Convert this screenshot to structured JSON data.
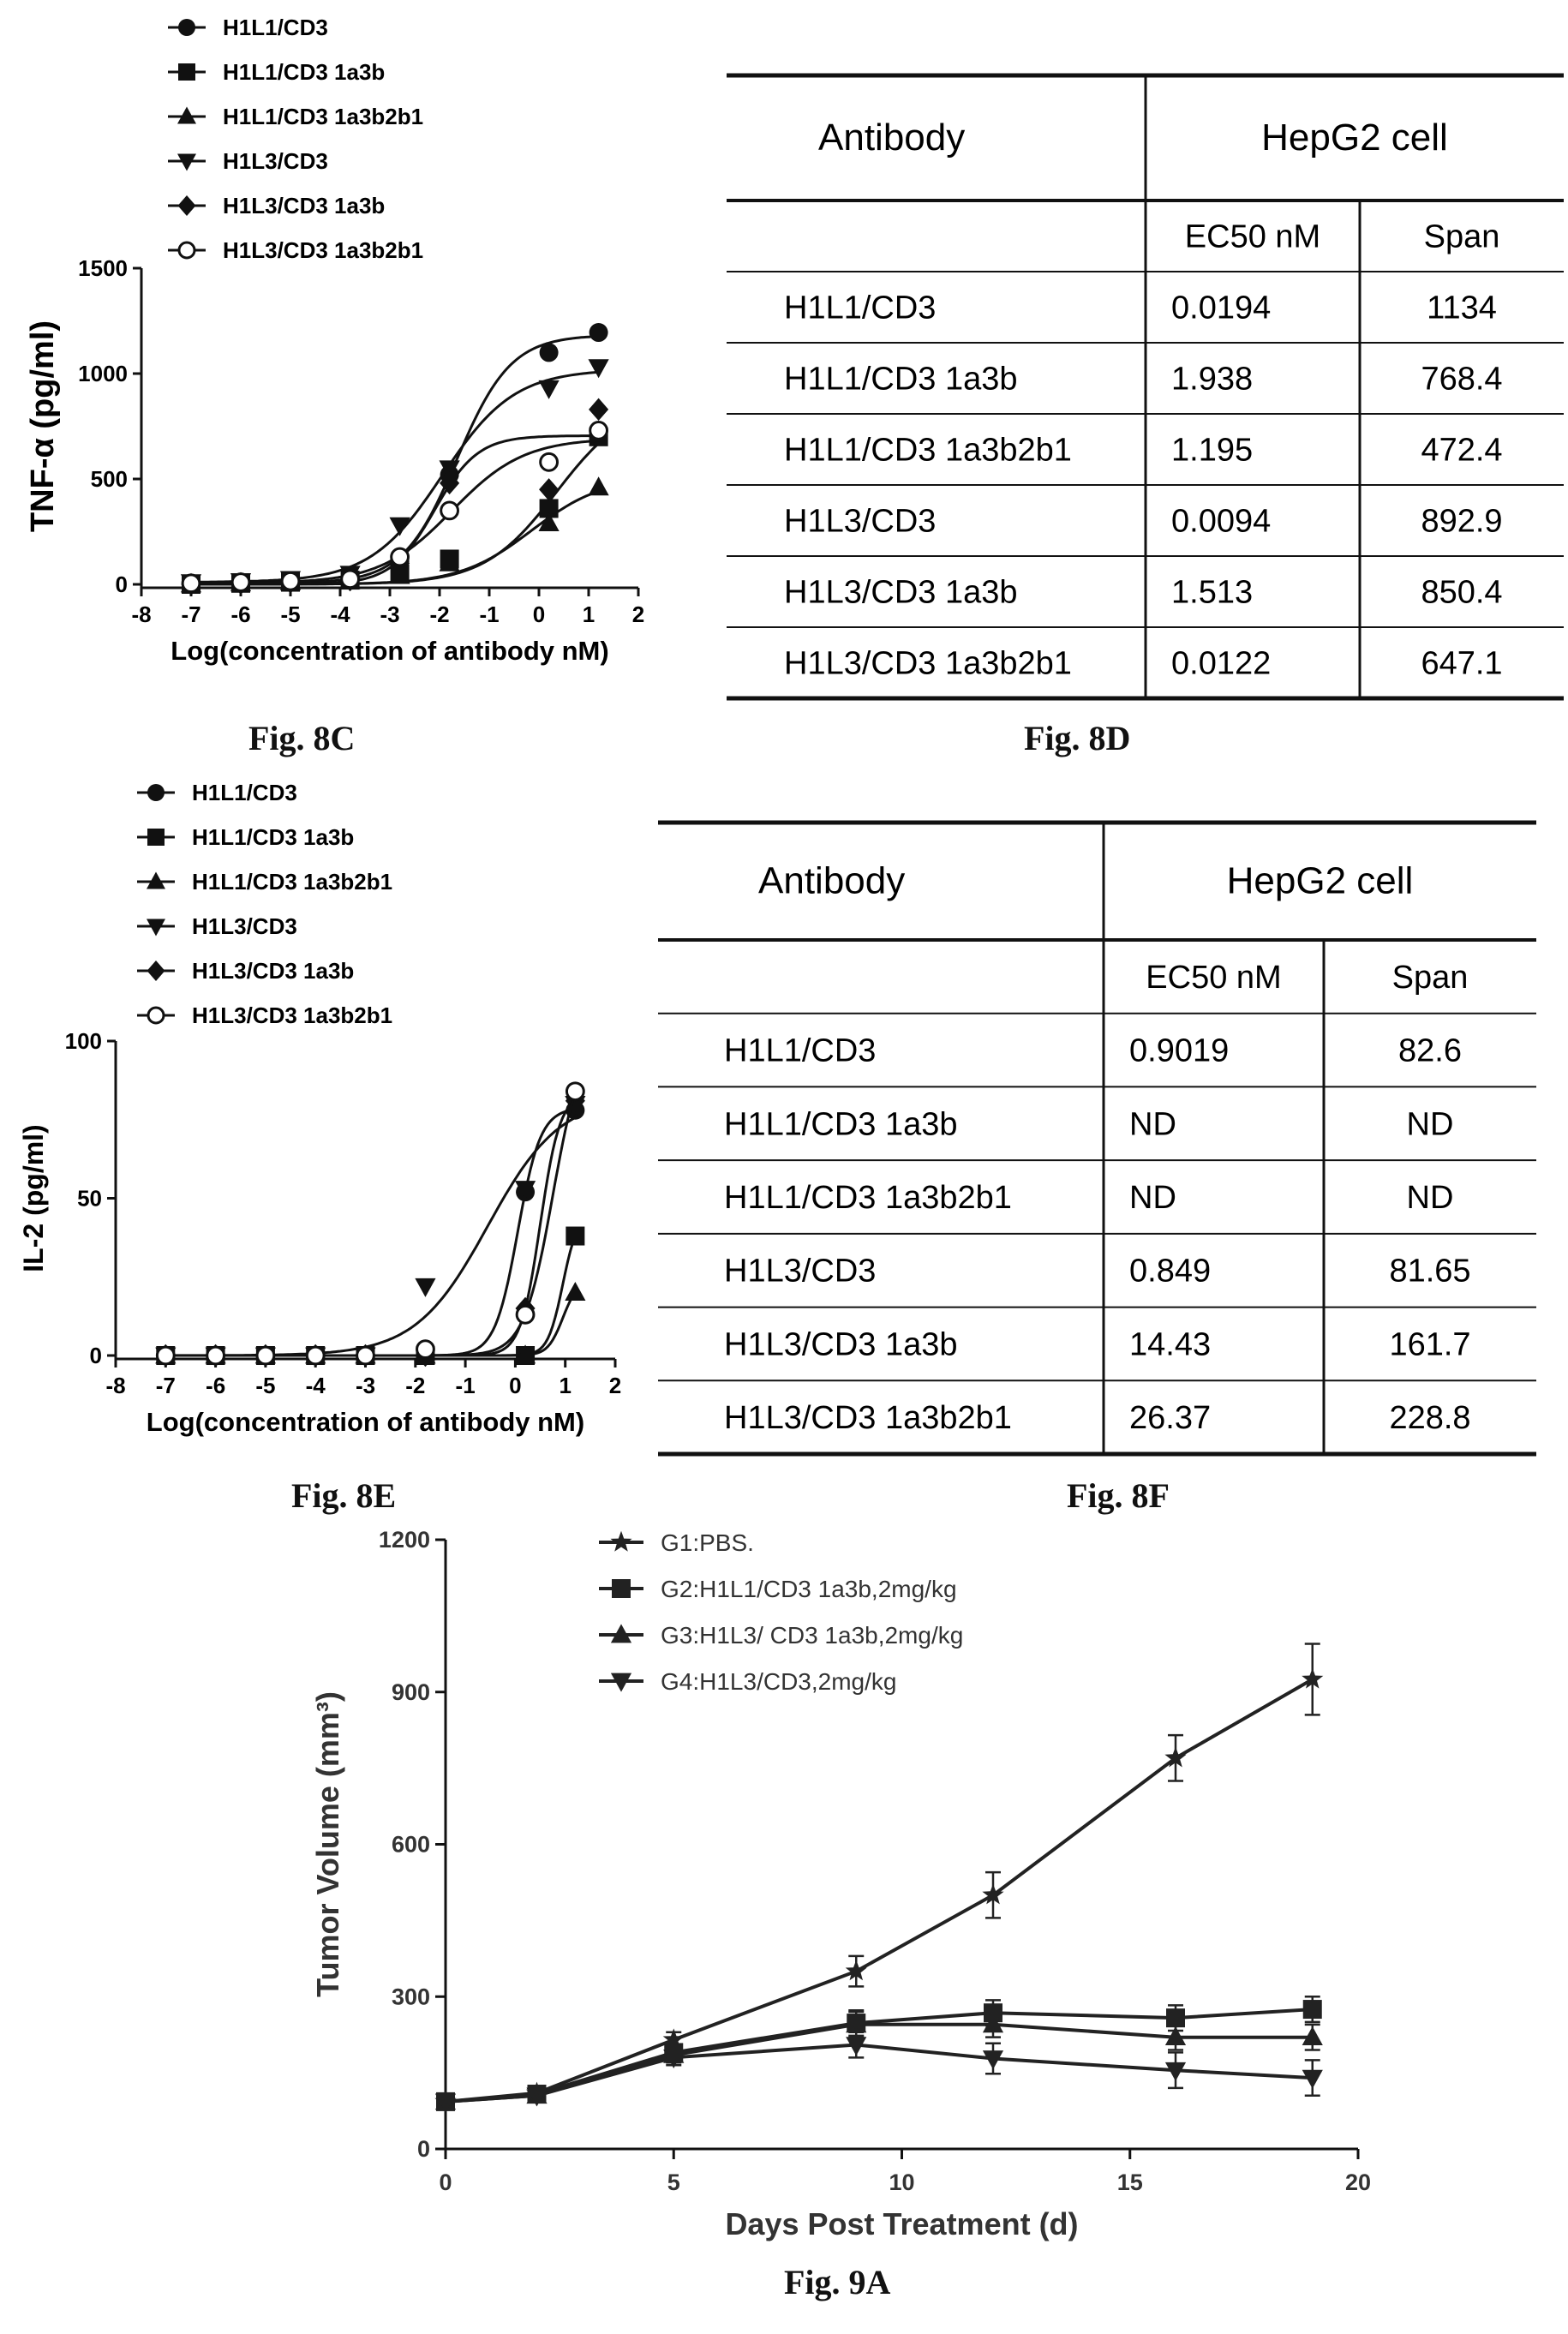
{
  "chart_data": [
    {
      "figure": "Fig. 8C",
      "type": "scatter",
      "ylabel": "TNF-α (pg/ml)",
      "xlabel": "Log(concentration  of antibody nM)",
      "xlim": [
        -8,
        2
      ],
      "ylim": [
        0,
        1500
      ],
      "xticks": [
        -8,
        -7,
        -6,
        -5,
        -4,
        -3,
        -2,
        -1,
        0,
        1,
        2
      ],
      "yticks": [
        0,
        500,
        1000,
        1500
      ],
      "legend_position": "top-left",
      "series": [
        {
          "name": "H1L1/CD3",
          "marker": "circle",
          "points": [
            [
              -7,
              5
            ],
            [
              -6,
              10
            ],
            [
              -5,
              15
            ],
            [
              -3.8,
              30
            ],
            [
              -2.8,
              110
            ],
            [
              -1.8,
              520
            ],
            [
              0.2,
              1100
            ],
            [
              1.2,
              1195
            ]
          ]
        },
        {
          "name": "H1L1/CD3 1a3b",
          "marker": "square",
          "points": [
            [
              -7,
              0
            ],
            [
              -6,
              5
            ],
            [
              -5,
              10
            ],
            [
              -3.8,
              20
            ],
            [
              -2.8,
              50
            ],
            [
              -1.8,
              120
            ],
            [
              0.2,
              360
            ],
            [
              1.2,
              700
            ]
          ]
        },
        {
          "name": "H1L1/CD3 1a3b2b1",
          "marker": "triangle-up",
          "points": [
            [
              -7,
              0
            ],
            [
              -6,
              5
            ],
            [
              -5,
              10
            ],
            [
              -3.8,
              15
            ],
            [
              -2.8,
              40
            ],
            [
              -1.8,
              100
            ],
            [
              0.2,
              290
            ],
            [
              1.2,
              460
            ]
          ]
        },
        {
          "name": "H1L3/CD3",
          "marker": "triangle-down",
          "points": [
            [
              -7,
              10
            ],
            [
              -6,
              15
            ],
            [
              -5,
              25
            ],
            [
              -3.8,
              50
            ],
            [
              -2.8,
              280
            ],
            [
              -1.8,
              550
            ],
            [
              0.2,
              930
            ],
            [
              1.2,
              1030
            ]
          ]
        },
        {
          "name": "H1L3/CD3 1a3b",
          "marker": "diamond",
          "points": [
            [
              -7,
              0
            ],
            [
              -6,
              5
            ],
            [
              -5,
              10
            ],
            [
              -3.8,
              20
            ],
            [
              -2.8,
              100
            ],
            [
              -1.8,
              480
            ],
            [
              0.2,
              450
            ],
            [
              1.2,
              830
            ]
          ]
        },
        {
          "name": "H1L3/CD3 1a3b2b1",
          "marker": "circle-open",
          "points": [
            [
              -7,
              5
            ],
            [
              -6,
              10
            ],
            [
              -5,
              15
            ],
            [
              -3.8,
              25
            ],
            [
              -2.8,
              130
            ],
            [
              -1.8,
              350
            ],
            [
              0.2,
              580
            ],
            [
              1.2,
              730
            ]
          ]
        }
      ]
    },
    {
      "figure": "Fig. 8E",
      "type": "scatter",
      "ylabel": "IL-2 (pg/ml)",
      "xlabel": "Log(concentration  of antibody nM)",
      "xlim": [
        -8,
        2
      ],
      "ylim": [
        0,
        100
      ],
      "xticks": [
        -8,
        -7,
        -6,
        -5,
        -4,
        -3,
        -2,
        -1,
        0,
        1,
        2
      ],
      "yticks": [
        0,
        50,
        100
      ],
      "legend_position": "top-left",
      "series": [
        {
          "name": "H1L1/CD3",
          "marker": "circle",
          "points": [
            [
              -7,
              0
            ],
            [
              -6,
              0
            ],
            [
              -5,
              0
            ],
            [
              -4,
              0
            ],
            [
              -3,
              0
            ],
            [
              -1.8,
              0
            ],
            [
              0.2,
              52
            ],
            [
              1.2,
              78
            ]
          ]
        },
        {
          "name": "H1L1/CD3 1a3b",
          "marker": "square",
          "points": [
            [
              -7,
              0
            ],
            [
              -6,
              0
            ],
            [
              -5,
              0
            ],
            [
              -4,
              0
            ],
            [
              -3,
              0
            ],
            [
              -1.8,
              0
            ],
            [
              0.2,
              0
            ],
            [
              1.2,
              38
            ]
          ]
        },
        {
          "name": "H1L1/CD3 1a3b2b1",
          "marker": "triangle-up",
          "points": [
            [
              -7,
              0
            ],
            [
              -6,
              0
            ],
            [
              -5,
              0
            ],
            [
              -4,
              0
            ],
            [
              -3,
              0
            ],
            [
              -1.8,
              0
            ],
            [
              0.2,
              0
            ],
            [
              1.2,
              20
            ]
          ]
        },
        {
          "name": "H1L3/CD3",
          "marker": "triangle-down",
          "points": [
            [
              -7,
              0
            ],
            [
              -6,
              0
            ],
            [
              -5,
              0
            ],
            [
              -4,
              0
            ],
            [
              -3,
              0
            ],
            [
              -1.8,
              22
            ],
            [
              0.2,
              53
            ],
            [
              1.2,
              80
            ]
          ]
        },
        {
          "name": "H1L3/CD3 1a3b",
          "marker": "diamond",
          "points": [
            [
              -7,
              0
            ],
            [
              -6,
              0
            ],
            [
              -5,
              0
            ],
            [
              -4,
              0
            ],
            [
              -3,
              0
            ],
            [
              -1.8,
              0
            ],
            [
              0.2,
              15
            ],
            [
              1.2,
              81
            ]
          ]
        },
        {
          "name": "H1L3/CD3 1a3b2b1",
          "marker": "circle-open",
          "points": [
            [
              -7,
              0
            ],
            [
              -6,
              0
            ],
            [
              -5,
              0
            ],
            [
              -4,
              0
            ],
            [
              -3,
              0
            ],
            [
              -1.8,
              2
            ],
            [
              0.2,
              13
            ],
            [
              1.2,
              84
            ]
          ]
        }
      ]
    },
    {
      "figure": "Fig. 9A",
      "type": "line",
      "ylabel": "Tumor Volume (mm³)",
      "xlabel": "Days Post Treatment (d)",
      "xlim": [
        0,
        20
      ],
      "ylim": [
        0,
        1200
      ],
      "xticks": [
        0,
        5,
        10,
        15,
        20
      ],
      "yticks": [
        0,
        300,
        600,
        900,
        1200
      ],
      "legend_position": "top-center",
      "series": [
        {
          "name": "G1:PBS.",
          "marker": "star",
          "x": [
            0,
            2,
            5,
            9,
            12,
            16,
            19
          ],
          "y": [
            93,
            110,
            215,
            350,
            500,
            770,
            925
          ],
          "err": [
            5,
            8,
            15,
            30,
            45,
            45,
            70
          ]
        },
        {
          "name": "G2:H1L1/CD3 1a3b,2mg/kg",
          "marker": "square",
          "x": [
            0,
            2,
            5,
            9,
            12,
            16,
            19
          ],
          "y": [
            93,
            108,
            190,
            248,
            268,
            258,
            275
          ],
          "err": [
            5,
            8,
            15,
            25,
            25,
            25,
            25
          ]
        },
        {
          "name": "G3:H1L3/ CD3 1a3b,2mg/kg",
          "marker": "triangle-up",
          "x": [
            0,
            2,
            5,
            9,
            12,
            16,
            19
          ],
          "y": [
            93,
            105,
            185,
            245,
            245,
            220,
            220
          ],
          "err": [
            5,
            8,
            15,
            25,
            25,
            25,
            25
          ]
        },
        {
          "name": "G4:H1L3/CD3,2mg/kg",
          "marker": "triangle-down",
          "x": [
            0,
            2,
            5,
            9,
            12,
            16,
            19
          ],
          "y": [
            93,
            105,
            180,
            205,
            178,
            155,
            140
          ],
          "err": [
            5,
            8,
            15,
            25,
            30,
            35,
            35
          ]
        }
      ]
    },
    {
      "figure": "Fig. 8D",
      "type": "table",
      "headers": {
        "antibody": "Antibody",
        "group": "HepG2 cell",
        "ec50": "EC50 nM",
        "span": "Span"
      },
      "rows": [
        [
          "H1L1/CD3",
          "0.0194",
          "1134"
        ],
        [
          "H1L1/CD3 1a3b",
          "1.938",
          "768.4"
        ],
        [
          "H1L1/CD3 1a3b2b1",
          "1.195",
          "472.4"
        ],
        [
          "H1L3/CD3",
          "0.0094",
          "892.9"
        ],
        [
          "H1L3/CD3 1a3b",
          "1.513",
          "850.4"
        ],
        [
          "H1L3/CD3 1a3b2b1",
          "0.0122",
          "647.1"
        ]
      ]
    },
    {
      "figure": "Fig. 8F",
      "type": "table",
      "headers": {
        "antibody": "Antibody",
        "group": "HepG2 cell",
        "ec50": "EC50 nM",
        "span": "Span"
      },
      "rows": [
        [
          "H1L1/CD3",
          "0.9019",
          "82.6"
        ],
        [
          "H1L1/CD3 1a3b",
          "ND",
          "ND"
        ],
        [
          "H1L1/CD3 1a3b2b1",
          "ND",
          "ND"
        ],
        [
          "H1L3/CD3",
          "0.849",
          "81.65"
        ],
        [
          "H1L3/CD3 1a3b",
          "14.43",
          "161.7"
        ],
        [
          "H1L3/CD3 1a3b2b1",
          "26.37",
          "228.8"
        ]
      ]
    }
  ]
}
